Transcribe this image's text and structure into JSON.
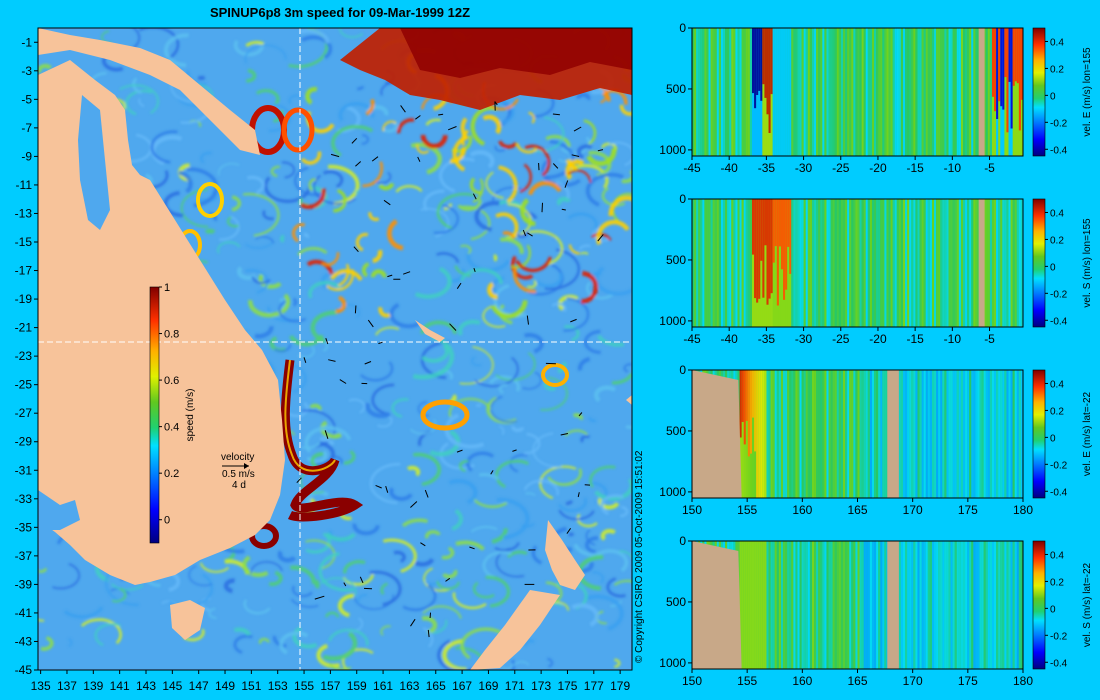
{
  "title": "SPINUP6p8 3m speed for 09-Mar-1999 12Z",
  "copyright": "© Copyright CSIRO 2009   05-Oct-2009 15:51:02",
  "colors": {
    "background": "#00ccff",
    "land": "#f7c39a",
    "section_land": "#c8a888",
    "section_line": "#ffffff"
  },
  "chart_data": [
    {
      "type": "heatmap",
      "title": "SPINUP6p8 3m speed for 09-Mar-1999 12Z",
      "x_ticks": [
        135,
        137,
        139,
        141,
        143,
        145,
        147,
        149,
        151,
        153,
        155,
        157,
        159,
        161,
        163,
        165,
        167,
        169,
        171,
        173,
        175,
        177,
        179
      ],
      "y_ticks": [
        -1,
        -3,
        -5,
        -7,
        -9,
        -11,
        -13,
        -15,
        -17,
        -19,
        -21,
        -23,
        -25,
        -27,
        -29,
        -31,
        -33,
        -35,
        -37,
        -39,
        -41,
        -43,
        -45
      ],
      "xlim": [
        134.8,
        179.9
      ],
      "ylim": [
        -45,
        0
      ],
      "colorbar": {
        "label": "speed (m/s)",
        "ticks": [
          0,
          0.2,
          0.4,
          0.6,
          0.8,
          1
        ],
        "range": [
          -0.1,
          1
        ]
      },
      "legend": {
        "title": "velocity",
        "speed": "0.5 m/s",
        "duration": "4 d"
      },
      "section_lines": {
        "lon": 155,
        "lat": -22
      }
    },
    {
      "type": "heatmap",
      "ylabel": "vel. E (m/s) lon=155",
      "x_ticks": [
        -45,
        -40,
        -35,
        -30,
        -25,
        -20,
        -15,
        -10,
        -5
      ],
      "y_ticks": [
        0,
        500,
        1000
      ],
      "xlim": [
        -45,
        -0.5
      ],
      "ylim": [
        1050,
        0
      ],
      "colorbar": {
        "ticks": [
          0.4,
          0.2,
          0,
          -0.2,
          -0.4
        ],
        "range": [
          -0.45,
          0.5
        ]
      }
    },
    {
      "type": "heatmap",
      "ylabel": "vel. S (m/s) lon=155",
      "x_ticks": [
        -45,
        -40,
        -35,
        -30,
        -25,
        -20,
        -15,
        -10,
        -5
      ],
      "y_ticks": [
        0,
        500,
        1000
      ],
      "xlim": [
        -45,
        -0.5
      ],
      "ylim": [
        1050,
        0
      ],
      "colorbar": {
        "ticks": [
          0.4,
          0.2,
          0,
          -0.2,
          -0.4
        ],
        "range": [
          -0.45,
          0.5
        ]
      }
    },
    {
      "type": "heatmap",
      "ylabel": "vel. E (m/s) lat=-22",
      "x_ticks": [
        150,
        155,
        160,
        165,
        170,
        175,
        180
      ],
      "y_ticks": [
        0,
        500,
        1000
      ],
      "xlim": [
        150,
        180
      ],
      "ylim": [
        1050,
        0
      ],
      "colorbar": {
        "ticks": [
          0.4,
          0.2,
          0,
          -0.2,
          -0.4
        ],
        "range": [
          -0.45,
          0.5
        ]
      }
    },
    {
      "type": "heatmap",
      "ylabel": "vel. S (m/s) lat=-22",
      "x_ticks": [
        150,
        155,
        160,
        165,
        170,
        175,
        180
      ],
      "y_ticks": [
        0,
        500,
        1000
      ],
      "xlim": [
        150,
        180
      ],
      "ylim": [
        1050,
        0
      ],
      "colorbar": {
        "ticks": [
          0.4,
          0.2,
          0,
          -0.2,
          -0.4
        ],
        "range": [
          -0.45,
          0.5
        ]
      }
    }
  ]
}
